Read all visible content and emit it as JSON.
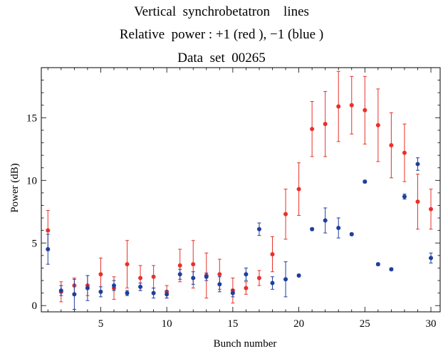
{
  "chart_data": {
    "type": "scatter",
    "title_lines": [
      "Vertical  synchrobetatron    lines",
      "Relative  power : +1 (red ), −1 (blue )",
      "Data  set  00265"
    ],
    "xlabel": "Bunch  number",
    "ylabel": "Power  (dB)",
    "xlim": [
      0.5,
      30.7
    ],
    "ylim": [
      -0.5,
      19.0
    ],
    "xticks": [
      5,
      10,
      15,
      20,
      25,
      30
    ],
    "yticks": [
      0,
      5,
      10,
      15
    ],
    "grid": false,
    "series": [
      {
        "color": "#e8312a",
        "x": [
          1,
          2,
          3,
          4,
          5,
          6,
          7,
          8,
          9,
          10,
          11,
          12,
          13,
          14,
          15,
          16,
          17,
          18,
          19,
          20,
          21,
          22,
          23,
          24,
          25,
          26,
          27,
          28,
          29,
          30
        ],
        "y": [
          6.0,
          1.1,
          1.6,
          1.6,
          2.5,
          1.4,
          3.3,
          2.2,
          2.3,
          1.1,
          3.2,
          3.3,
          2.4,
          2.5,
          1.2,
          1.4,
          2.2,
          4.1,
          7.3,
          9.3,
          14.1,
          14.5,
          15.9,
          16.0,
          15.6,
          14.4,
          12.8,
          12.2,
          8.3,
          7.7
        ],
        "err": [
          1.6,
          0.8,
          0.6,
          0.8,
          1.3,
          0.9,
          1.9,
          1.0,
          0.9,
          0.5,
          1.3,
          1.9,
          1.8,
          1.2,
          1.0,
          0.5,
          0.6,
          1.4,
          2.0,
          2.1,
          2.2,
          2.6,
          2.8,
          2.3,
          2.7,
          2.9,
          2.6,
          2.3,
          2.2,
          1.6
        ]
      },
      {
        "color": "#1f3f9c",
        "x": [
          1,
          2,
          3,
          4,
          5,
          6,
          7,
          8,
          9,
          10,
          11,
          12,
          13,
          14,
          15,
          16,
          17,
          18,
          19,
          20,
          21,
          22,
          23,
          24,
          25,
          26,
          27,
          28,
          29,
          30
        ],
        "y": [
          4.5,
          1.2,
          0.9,
          1.4,
          1.1,
          1.6,
          1.0,
          1.5,
          1.0,
          0.9,
          2.5,
          2.2,
          2.3,
          1.7,
          1.0,
          2.5,
          6.1,
          1.8,
          2.1,
          2.4,
          6.1,
          6.8,
          6.2,
          5.7,
          9.9,
          3.3,
          2.9,
          8.7,
          11.3,
          3.8
        ],
        "err": [
          1.2,
          0.4,
          1.2,
          1.0,
          0.4,
          0.4,
          0.2,
          0.3,
          0.4,
          0.3,
          0.4,
          0.5,
          0.3,
          0.6,
          0.3,
          0.5,
          0.5,
          0.5,
          1.4,
          0.1,
          0.1,
          1.0,
          0.8,
          0.1,
          0.1,
          0.1,
          0.1,
          0.2,
          0.5,
          0.4
        ]
      }
    ]
  }
}
